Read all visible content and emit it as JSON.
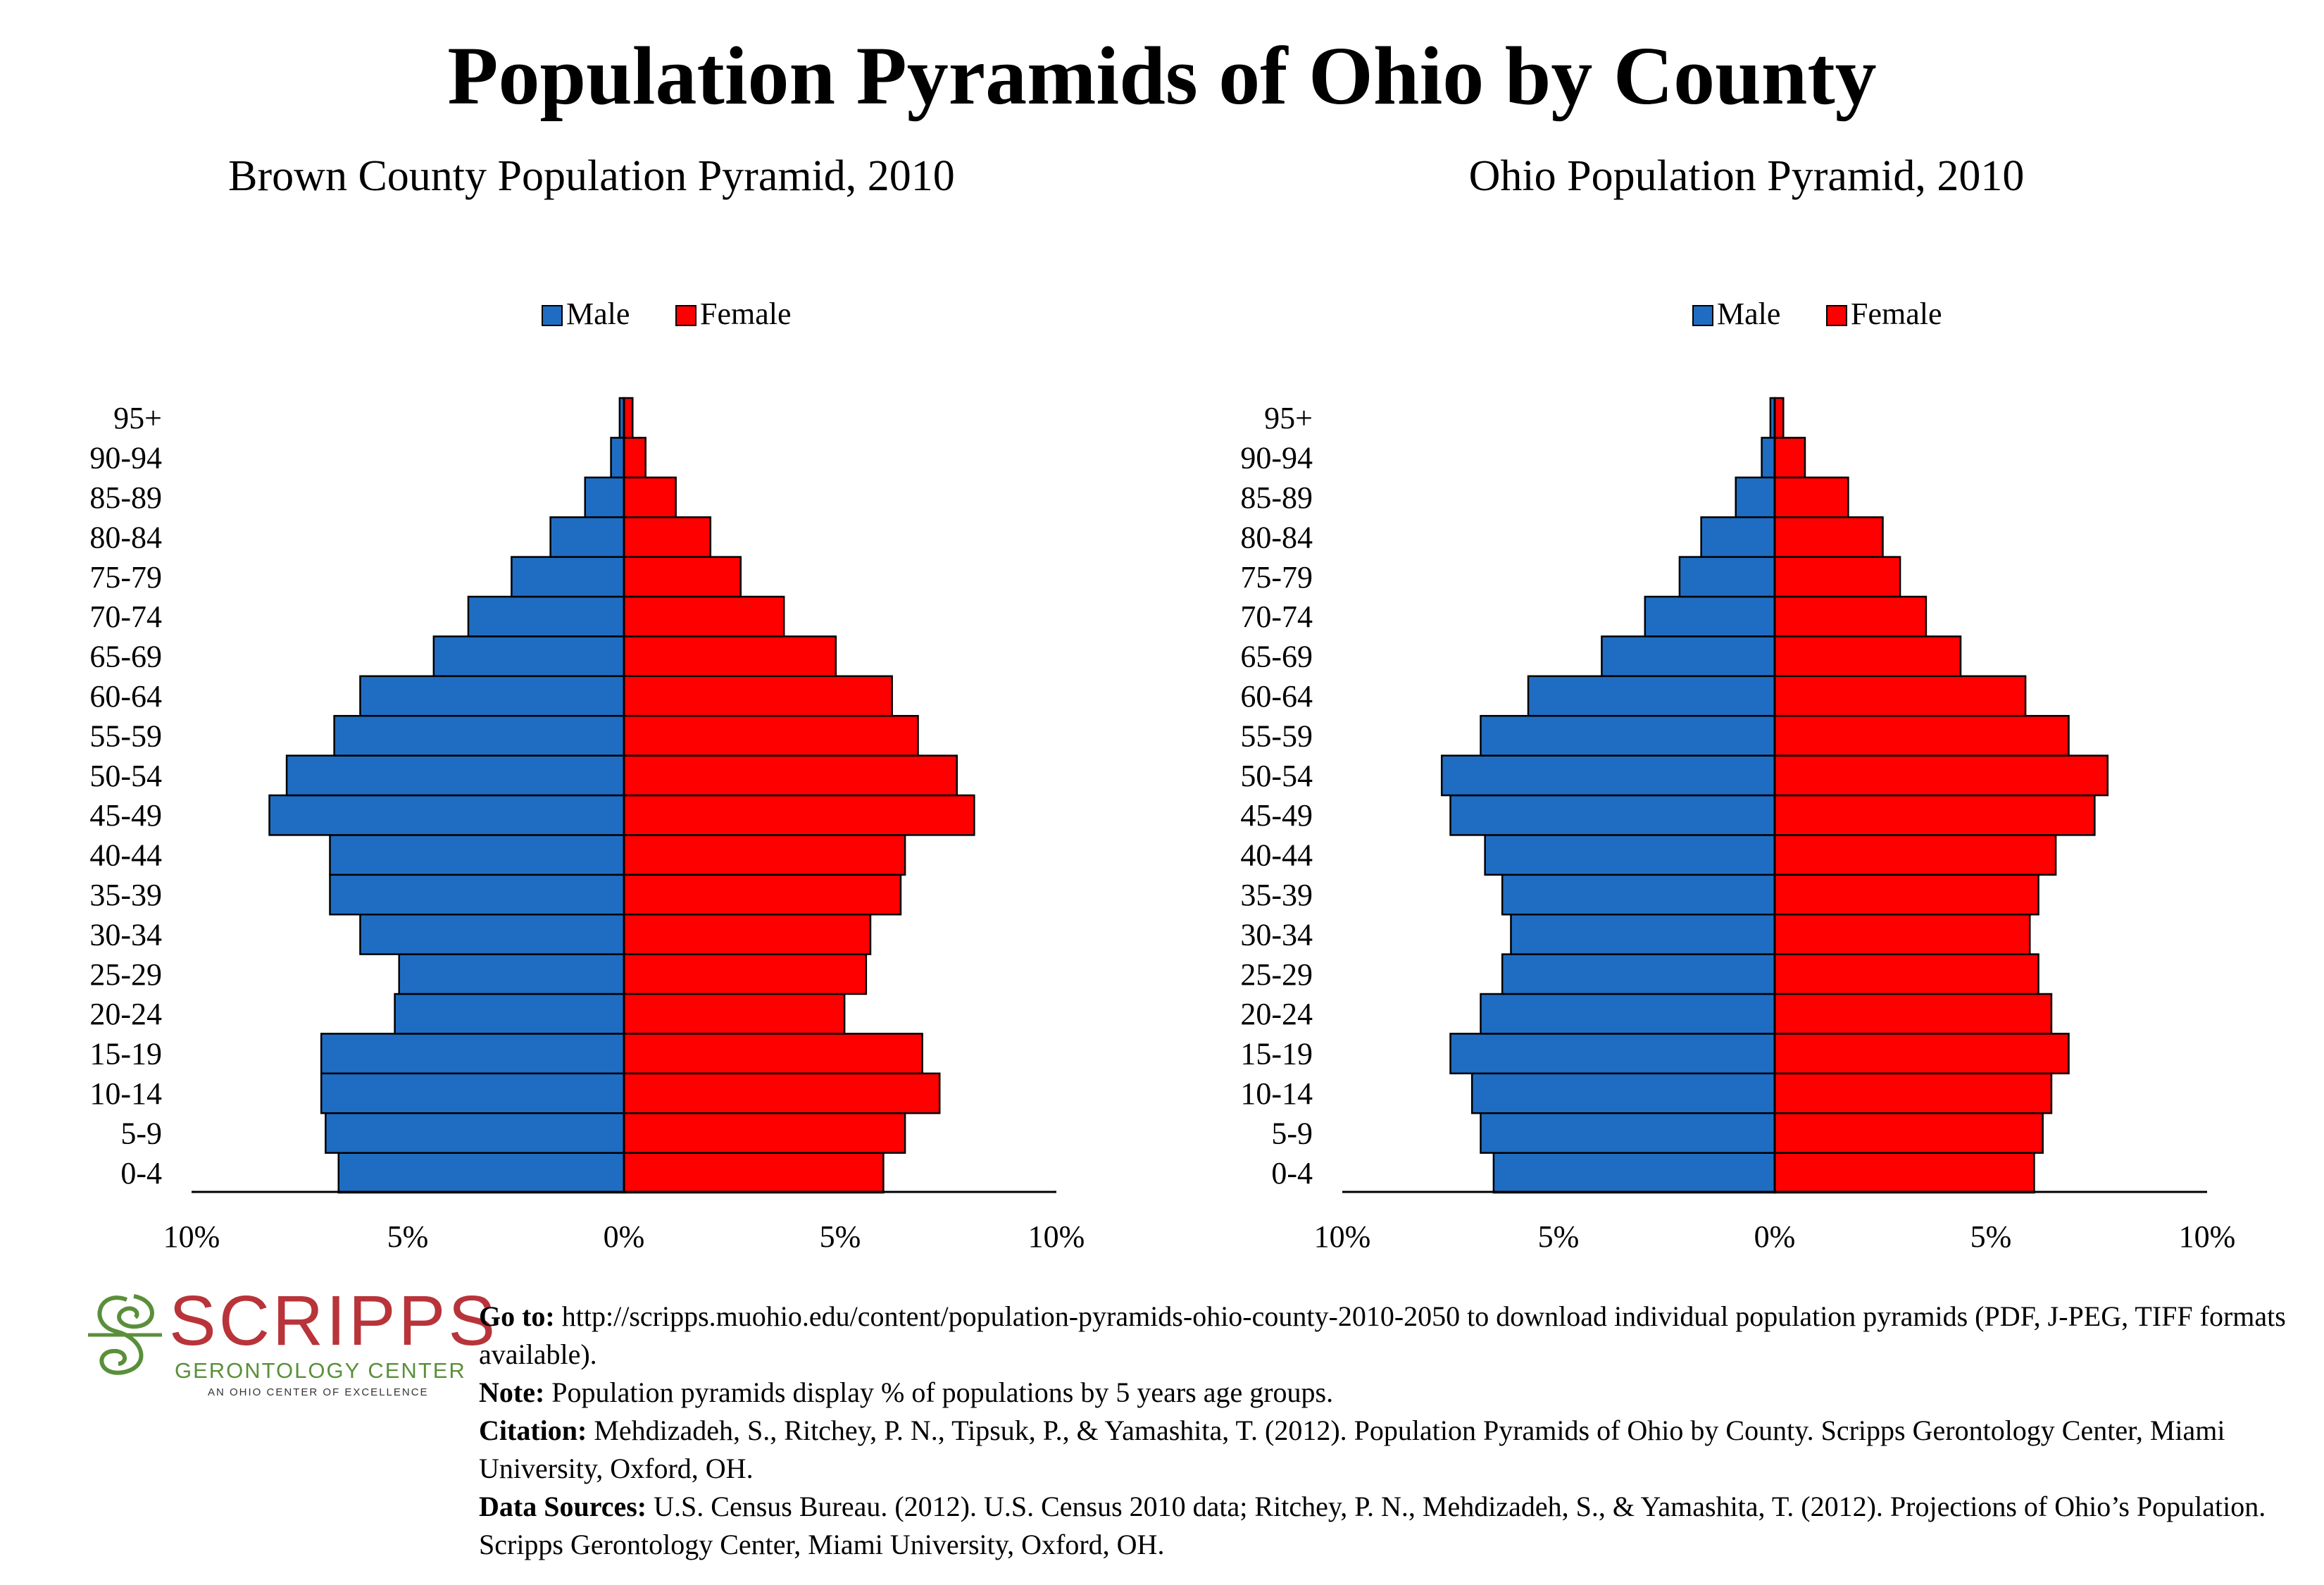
{
  "title": "Population Pyramids of Ohio by County",
  "colors": {
    "male": "#1f6dc2",
    "female": "#ff0000",
    "outline": "#000000"
  },
  "legend": {
    "male": "Male",
    "female": "Female"
  },
  "chart_data": [
    {
      "type": "bar",
      "title": "Brown County Population Pyramid, 2010",
      "orientation": "horizontal-pyramid",
      "xlim": [
        -10,
        10
      ],
      "x_ticks": [
        "10%",
        "5%",
        "0%",
        "5%",
        "10%"
      ],
      "categories": [
        "0-4",
        "5-9",
        "10-14",
        "15-19",
        "20-24",
        "25-29",
        "30-34",
        "35-39",
        "40-44",
        "45-49",
        "50-54",
        "55-59",
        "60-64",
        "65-69",
        "70-74",
        "75-79",
        "80-84",
        "85-89",
        "90-94",
        "95+"
      ],
      "series": [
        {
          "name": "Male",
          "values": [
            6.6,
            6.9,
            7.0,
            7.0,
            5.3,
            5.2,
            6.1,
            6.8,
            6.8,
            8.2,
            7.8,
            6.7,
            6.1,
            4.4,
            3.6,
            2.6,
            1.7,
            0.9,
            0.3,
            0.1
          ]
        },
        {
          "name": "Female",
          "values": [
            6.0,
            6.5,
            7.3,
            6.9,
            5.1,
            5.6,
            5.7,
            6.4,
            6.5,
            8.1,
            7.7,
            6.8,
            6.2,
            4.9,
            3.7,
            2.7,
            2.0,
            1.2,
            0.5,
            0.2
          ]
        }
      ],
      "legend_position": "top-center"
    },
    {
      "type": "bar",
      "title": "Ohio Population Pyramid, 2010",
      "orientation": "horizontal-pyramid",
      "xlim": [
        -10,
        10
      ],
      "x_ticks": [
        "10%",
        "5%",
        "0%",
        "5%",
        "10%"
      ],
      "categories": [
        "0-4",
        "5-9",
        "10-14",
        "15-19",
        "20-24",
        "25-29",
        "30-34",
        "35-39",
        "40-44",
        "45-49",
        "50-54",
        "55-59",
        "60-64",
        "65-69",
        "70-74",
        "75-79",
        "80-84",
        "85-89",
        "90-94",
        "95+"
      ],
      "series": [
        {
          "name": "Male",
          "values": [
            6.5,
            6.8,
            7.0,
            7.5,
            6.8,
            6.3,
            6.1,
            6.3,
            6.7,
            7.5,
            7.7,
            6.8,
            5.7,
            4.0,
            3.0,
            2.2,
            1.7,
            0.9,
            0.3,
            0.1
          ]
        },
        {
          "name": "Female",
          "values": [
            6.0,
            6.2,
            6.4,
            6.8,
            6.4,
            6.1,
            5.9,
            6.1,
            6.5,
            7.4,
            7.7,
            6.8,
            5.8,
            4.3,
            3.5,
            2.9,
            2.5,
            1.7,
            0.7,
            0.2
          ]
        }
      ],
      "legend_position": "top-center"
    }
  ],
  "logo": {
    "word": "SCRIPPS",
    "sub": "GERONTOLOGY CENTER",
    "tag": "AN OHIO CENTER OF EXCELLENCE"
  },
  "notes": {
    "goto_label": "Go to:",
    "goto_text": " http://scripps.muohio.edu/content/population-pyramids-ohio-county-2010-2050 to download individual population pyramids (PDF, J-PEG, TIFF formats available).",
    "note_label": "Note:",
    "note_text": " Population pyramids display % of populations by 5 years age groups.",
    "citation_label": "Citation:",
    "citation_text": " Mehdizadeh, S., Ritchey, P. N., Tipsuk, P., & Yamashita, T. (2012). Population Pyramids of Ohio by County. Scripps Gerontology Center, Miami University, Oxford, OH.",
    "sources_label": "Data Sources:",
    "sources_text": " U.S. Census Bureau. (2012). U.S. Census 2010 data; Ritchey, P. N., Mehdizadeh, S., & Yamashita, T. (2012). Projections of Ohio’s Population. Scripps Gerontology Center, Miami University, Oxford, OH."
  }
}
